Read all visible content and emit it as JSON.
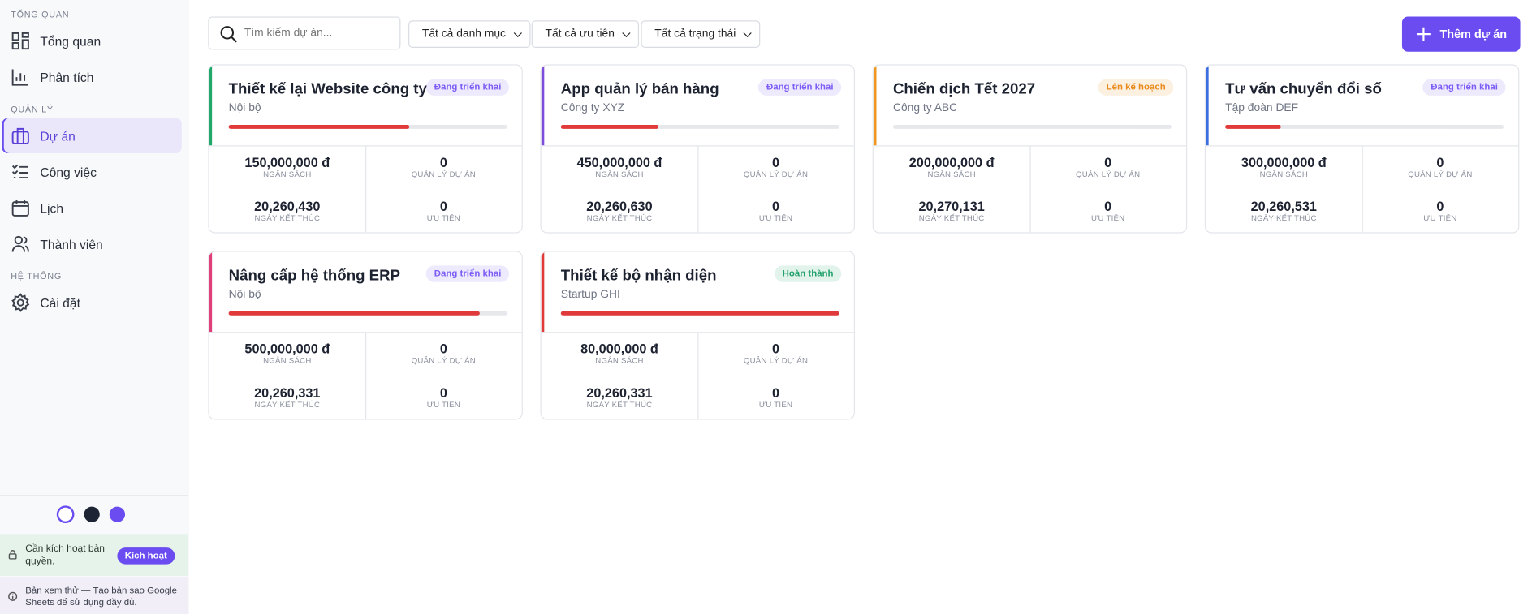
{
  "sidebar": {
    "sections": [
      {
        "title": "TỔNG QUAN",
        "items": [
          "Tổng quan",
          "Phân tích"
        ]
      },
      {
        "title": "QUẢN LÝ",
        "items": [
          "Dự án",
          "Công việc",
          "Lịch",
          "Thành viên"
        ]
      },
      {
        "title": "HỆ THỐNG",
        "items": [
          "Cài đặt"
        ]
      }
    ],
    "license": {
      "text": "Cần kích hoạt bản quyền.",
      "button": "Kích hoạt"
    },
    "preview": "Bản xem thử — Tạo bản sao Google Sheets để sử dụng đầy đủ."
  },
  "toolbar": {
    "search_placeholder": "Tìm kiếm dự án...",
    "filters": [
      "Tất cả danh mục",
      "Tất cả ưu tiên",
      "Tất cả trạng thái"
    ],
    "add_button": "Thêm dự án"
  },
  "stat_labels": {
    "budget": "NGÂN SÁCH",
    "manager": "QUẢN LÝ DỰ ÁN",
    "end_date": "NGÀY KẾT THÚC",
    "priority": "ƯU TIÊN"
  },
  "projects": [
    {
      "name": "Thiết kế lại Website công ty",
      "client": "Nội bộ",
      "status": "Đang triển khai",
      "status_color": "#7c5cf5",
      "accent": "#22a86b",
      "progress": 65,
      "budget": "150,000,000 đ",
      "manager": "0",
      "end_date": "20,260,430",
      "priority": "0"
    },
    {
      "name": "App quản lý bán hàng",
      "client": "Công ty XYZ",
      "status": "Đang triển khai",
      "status_color": "#7c5cf5",
      "accent": "#7c4ddb",
      "progress": 35,
      "budget": "450,000,000 đ",
      "manager": "0",
      "end_date": "20,260,630",
      "priority": "0"
    },
    {
      "name": "Chiến dịch Tết 2027",
      "client": "Công ty ABC",
      "status": "Lên kế hoạch",
      "status_color": "#e88a1a",
      "accent": "#f0961e",
      "progress": 0,
      "budget": "200,000,000 đ",
      "manager": "0",
      "end_date": "20,270,131",
      "priority": "0"
    },
    {
      "name": "Tư vấn chuyển đổi số",
      "client": "Tập đoàn DEF",
      "status": "Đang triển khai",
      "status_color": "#7c5cf5",
      "accent": "#3b6fe0",
      "progress": 20,
      "budget": "300,000,000 đ",
      "manager": "0",
      "end_date": "20,260,531",
      "priority": "0"
    },
    {
      "name": "Nâng cấp hệ thống ERP",
      "client": "Nội bộ",
      "status": "Đang triển khai",
      "status_color": "#7c5cf5",
      "accent": "#e0407a",
      "progress": 90,
      "budget": "500,000,000 đ",
      "manager": "0",
      "end_date": "20,260,331",
      "priority": "0"
    },
    {
      "name": "Thiết kế bộ nhận diện",
      "client": "Startup GHI",
      "status": "Hoàn thành",
      "status_color": "#22a06b",
      "accent": "#e03a3a",
      "progress": 100,
      "budget": "80,000,000 đ",
      "manager": "0",
      "end_date": "20,260,331",
      "priority": "0"
    }
  ]
}
